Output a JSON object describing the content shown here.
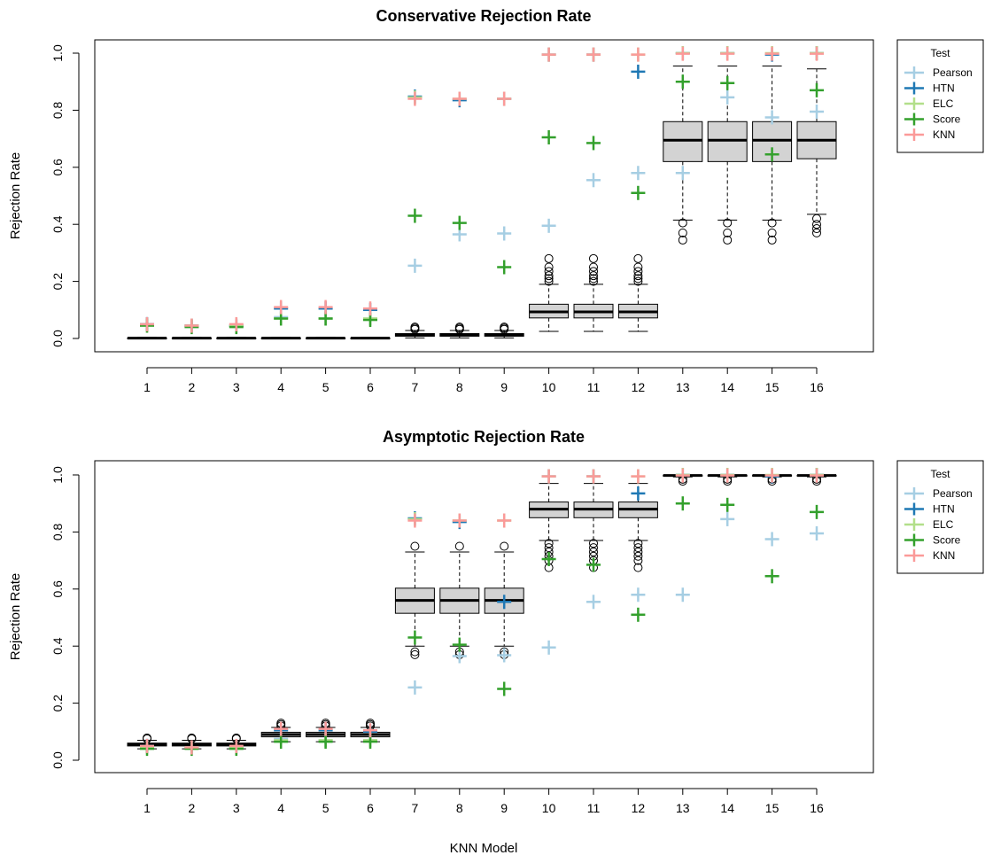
{
  "chart_data": [
    {
      "type": "boxplot",
      "title": "Conservative Rejection Rate",
      "xlabel": "",
      "ylabel": "Rejection Rate",
      "ylim": [
        0,
        1
      ],
      "yticks": [
        "0.0",
        "0.2",
        "0.4",
        "0.6",
        "0.8",
        "1.0"
      ],
      "categories": [
        "1",
        "2",
        "3",
        "4",
        "5",
        "6",
        "7",
        "8",
        "9",
        "10",
        "11",
        "12",
        "13",
        "14",
        "15",
        "16"
      ],
      "legend": {
        "title": "Test",
        "position": "top-right",
        "entries": [
          "Pearson",
          "HTN",
          "ELC",
          "Score",
          "KNN"
        ]
      },
      "boxes": [
        {
          "min": 0,
          "q1": 0,
          "median": 0.001,
          "q3": 0.002,
          "max": 0.004,
          "outliers": []
        },
        {
          "min": 0,
          "q1": 0,
          "median": 0.001,
          "q3": 0.002,
          "max": 0.004,
          "outliers": []
        },
        {
          "min": 0,
          "q1": 0,
          "median": 0.001,
          "q3": 0.002,
          "max": 0.004,
          "outliers": []
        },
        {
          "min": 0,
          "q1": 0,
          "median": 0.001,
          "q3": 0.002,
          "max": 0.004,
          "outliers": []
        },
        {
          "min": 0,
          "q1": 0,
          "median": 0.001,
          "q3": 0.002,
          "max": 0.004,
          "outliers": []
        },
        {
          "min": 0,
          "q1": 0,
          "median": 0.001,
          "q3": 0.002,
          "max": 0.004,
          "outliers": []
        },
        {
          "min": 0.002,
          "q1": 0.008,
          "median": 0.012,
          "q3": 0.017,
          "max": 0.028,
          "outliers": [
            0.032,
            0.036,
            0.04
          ]
        },
        {
          "min": 0.002,
          "q1": 0.008,
          "median": 0.012,
          "q3": 0.017,
          "max": 0.028,
          "outliers": [
            0.032,
            0.036,
            0.04
          ]
        },
        {
          "min": 0.002,
          "q1": 0.008,
          "median": 0.012,
          "q3": 0.017,
          "max": 0.028,
          "outliers": [
            0.032,
            0.036,
            0.04
          ]
        },
        {
          "min": 0.025,
          "q1": 0.072,
          "median": 0.093,
          "q3": 0.12,
          "max": 0.19,
          "outliers": [
            0.2,
            0.21,
            0.22,
            0.235,
            0.25,
            0.28
          ]
        },
        {
          "min": 0.025,
          "q1": 0.072,
          "median": 0.093,
          "q3": 0.12,
          "max": 0.19,
          "outliers": [
            0.2,
            0.21,
            0.22,
            0.235,
            0.25,
            0.28
          ]
        },
        {
          "min": 0.025,
          "q1": 0.072,
          "median": 0.093,
          "q3": 0.12,
          "max": 0.19,
          "outliers": [
            0.2,
            0.21,
            0.22,
            0.235,
            0.25,
            0.28
          ]
        },
        {
          "min": 0.415,
          "q1": 0.62,
          "median": 0.695,
          "q3": 0.76,
          "max": 0.955,
          "outliers": [
            0.405,
            0.37,
            0.345
          ]
        },
        {
          "min": 0.415,
          "q1": 0.62,
          "median": 0.695,
          "q3": 0.76,
          "max": 0.955,
          "outliers": [
            0.405,
            0.37,
            0.345
          ]
        },
        {
          "min": 0.415,
          "q1": 0.62,
          "median": 0.695,
          "q3": 0.76,
          "max": 0.955,
          "outliers": [
            0.405,
            0.37,
            0.345
          ]
        },
        {
          "min": 0.435,
          "q1": 0.63,
          "median": 0.695,
          "q3": 0.76,
          "max": 0.945,
          "outliers": [
            0.42,
            0.4,
            0.385,
            0.37
          ]
        }
      ],
      "series": [
        {
          "name": "Pearson",
          "color": "#A6CEE3",
          "values": [
            0.05,
            0.045,
            0.045,
            0.075,
            0.07,
            0.07,
            0.255,
            0.365,
            0.368,
            0.395,
            0.555,
            0.58,
            0.58,
            0.845,
            0.775,
            0.795
          ]
        },
        {
          "name": "HTN",
          "color": "#1F78B4",
          "values": [
            0.05,
            0.045,
            0.045,
            0.105,
            0.105,
            0.1,
            0.848,
            0.835,
            0.84,
            0.995,
            0.995,
            0.935,
            1.0,
            1.0,
            0.995,
            1.0
          ]
        },
        {
          "name": "ELC",
          "color": "#B2DF8A",
          "values": [
            0.045,
            0.045,
            0.045,
            0.07,
            0.07,
            0.07,
            0.845,
            0.84,
            0.84,
            0.995,
            0.995,
            0.995,
            1.0,
            1.0,
            1.0,
            1.0
          ]
        },
        {
          "name": "Score",
          "color": "#33A02C",
          "values": [
            0.045,
            0.04,
            0.04,
            0.07,
            0.07,
            0.065,
            0.43,
            0.405,
            0.25,
            0.705,
            0.685,
            0.51,
            0.9,
            0.895,
            0.645,
            0.87
          ]
        },
        {
          "name": "KNN",
          "color": "#FB9A99",
          "values": [
            0.05,
            0.045,
            0.05,
            0.11,
            0.11,
            0.105,
            0.84,
            0.84,
            0.84,
            0.995,
            0.995,
            0.995,
            0.998,
            0.998,
            0.998,
            0.998
          ]
        }
      ]
    },
    {
      "type": "boxplot",
      "title": "Asymptotic Rejection Rate",
      "xlabel": "KNN Model",
      "ylabel": "Rejection Rate",
      "ylim": [
        0,
        1
      ],
      "yticks": [
        "0.0",
        "0.2",
        "0.4",
        "0.6",
        "0.8",
        "1.0"
      ],
      "categories": [
        "1",
        "2",
        "3",
        "4",
        "5",
        "6",
        "7",
        "8",
        "9",
        "10",
        "11",
        "12",
        "13",
        "14",
        "15",
        "16"
      ],
      "legend": {
        "title": "Test",
        "position": "top-right",
        "entries": [
          "Pearson",
          "HTN",
          "ELC",
          "Score",
          "KNN"
        ]
      },
      "boxes": [
        {
          "min": 0.04,
          "q1": 0.05,
          "median": 0.055,
          "q3": 0.06,
          "max": 0.07,
          "outliers": [
            0.075,
            0.078
          ]
        },
        {
          "min": 0.04,
          "q1": 0.05,
          "median": 0.055,
          "q3": 0.06,
          "max": 0.07,
          "outliers": [
            0.075,
            0.078
          ]
        },
        {
          "min": 0.04,
          "q1": 0.05,
          "median": 0.055,
          "q3": 0.06,
          "max": 0.07,
          "outliers": [
            0.075,
            0.078
          ]
        },
        {
          "min": 0.065,
          "q1": 0.082,
          "median": 0.09,
          "q3": 0.098,
          "max": 0.115,
          "outliers": [
            0.12,
            0.125,
            0.13
          ]
        },
        {
          "min": 0.065,
          "q1": 0.082,
          "median": 0.09,
          "q3": 0.098,
          "max": 0.115,
          "outliers": [
            0.12,
            0.125,
            0.13
          ]
        },
        {
          "min": 0.065,
          "q1": 0.082,
          "median": 0.09,
          "q3": 0.098,
          "max": 0.115,
          "outliers": [
            0.12,
            0.125,
            0.13
          ]
        },
        {
          "min": 0.4,
          "q1": 0.515,
          "median": 0.56,
          "q3": 0.603,
          "max": 0.73,
          "outliers": [
            0.38,
            0.37,
            0.75
          ]
        },
        {
          "min": 0.4,
          "q1": 0.515,
          "median": 0.56,
          "q3": 0.603,
          "max": 0.73,
          "outliers": [
            0.38,
            0.37,
            0.75
          ]
        },
        {
          "min": 0.4,
          "q1": 0.515,
          "median": 0.56,
          "q3": 0.603,
          "max": 0.73,
          "outliers": [
            0.38,
            0.37,
            0.75
          ]
        },
        {
          "min": 0.77,
          "q1": 0.85,
          "median": 0.88,
          "q3": 0.905,
          "max": 0.97,
          "outliers": [
            0.76,
            0.745,
            0.73,
            0.715,
            0.7,
            0.675
          ]
        },
        {
          "min": 0.77,
          "q1": 0.85,
          "median": 0.88,
          "q3": 0.905,
          "max": 0.97,
          "outliers": [
            0.76,
            0.745,
            0.73,
            0.715,
            0.7,
            0.675
          ]
        },
        {
          "min": 0.77,
          "q1": 0.85,
          "median": 0.88,
          "q3": 0.905,
          "max": 0.97,
          "outliers": [
            0.76,
            0.745,
            0.73,
            0.715,
            0.7,
            0.675
          ]
        },
        {
          "min": 0.993,
          "q1": 0.997,
          "median": 0.998,
          "q3": 0.999,
          "max": 1.0,
          "outliers": [
            0.985,
            0.978
          ]
        },
        {
          "min": 0.993,
          "q1": 0.997,
          "median": 0.998,
          "q3": 0.999,
          "max": 1.0,
          "outliers": [
            0.985,
            0.978
          ]
        },
        {
          "min": 0.993,
          "q1": 0.997,
          "median": 0.998,
          "q3": 0.999,
          "max": 1.0,
          "outliers": [
            0.985,
            0.978
          ]
        },
        {
          "min": 0.993,
          "q1": 0.997,
          "median": 0.998,
          "q3": 0.999,
          "max": 1.0,
          "outliers": [
            0.985,
            0.978
          ]
        }
      ],
      "series": [
        {
          "name": "Pearson",
          "color": "#A6CEE3",
          "values": [
            0.05,
            0.045,
            0.045,
            0.075,
            0.07,
            0.07,
            0.255,
            0.365,
            0.368,
            0.395,
            0.555,
            0.58,
            0.58,
            0.845,
            0.775,
            0.795
          ]
        },
        {
          "name": "HTN",
          "color": "#1F78B4",
          "values": [
            0.05,
            0.045,
            0.045,
            0.105,
            0.105,
            0.1,
            0.848,
            0.835,
            0.555,
            0.995,
            0.995,
            0.935,
            1.0,
            1.0,
            0.995,
            1.0
          ]
        },
        {
          "name": "ELC",
          "color": "#B2DF8A",
          "values": [
            0.045,
            0.045,
            0.045,
            0.07,
            0.07,
            0.07,
            0.845,
            0.84,
            0.84,
            0.995,
            0.995,
            0.995,
            1.0,
            1.0,
            1.0,
            1.0
          ]
        },
        {
          "name": "Score",
          "color": "#33A02C",
          "values": [
            0.04,
            0.04,
            0.04,
            0.065,
            0.065,
            0.065,
            0.43,
            0.405,
            0.25,
            0.705,
            0.685,
            0.51,
            0.9,
            0.895,
            0.645,
            0.87
          ]
        },
        {
          "name": "KNN",
          "color": "#FB9A99",
          "values": [
            0.05,
            0.045,
            0.05,
            0.11,
            0.11,
            0.105,
            0.84,
            0.84,
            0.84,
            0.995,
            0.995,
            0.995,
            0.998,
            0.998,
            0.998,
            0.998
          ]
        }
      ]
    }
  ]
}
